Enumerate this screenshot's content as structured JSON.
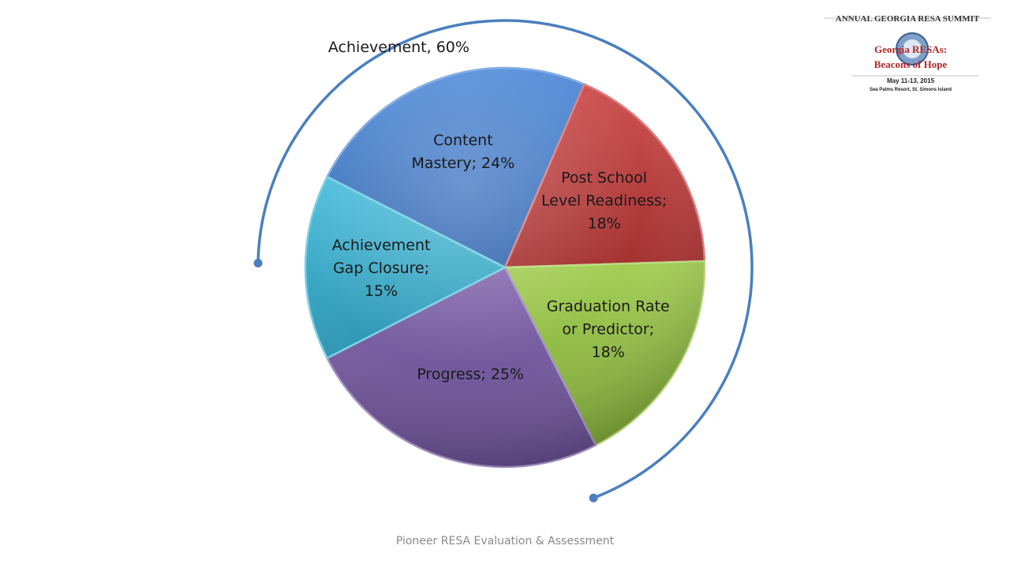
{
  "footer": "Pioneer RESA Evaluation & Assessment",
  "logo": {
    "banner": "ANNUAL GEORGIA RESA SUMMIT",
    "title_line1": "Georgia RESAs:",
    "title_line2": "Beacons of Hope",
    "dates": "May 11-13, 2015",
    "venue": "Sea Palms Resort, St. Simons Island"
  },
  "chart_data": {
    "type": "pie",
    "title": "",
    "slices": [
      {
        "label": "Content Mastery",
        "display": [
          "Content",
          "Mastery; 24%"
        ],
        "value": 24,
        "color": "#3f7fd6"
      },
      {
        "label": "Post School Level Readiness",
        "display": [
          "Post School",
          "Level Readiness;",
          "18%"
        ],
        "value": 18,
        "color": "#c83a3a"
      },
      {
        "label": "Graduation Rate or Predictor",
        "display": [
          "Graduation Rate",
          "or Predictor;",
          "18%"
        ],
        "value": 18,
        "color": "#98c940"
      },
      {
        "label": "Progress",
        "display": [
          "Progress; 25%"
        ],
        "value": 25,
        "color": "#7557a6"
      },
      {
        "label": "Achievement Gap Closure",
        "display": [
          "Achievement",
          "Gap Closure;",
          "15%"
        ],
        "value": 15,
        "color": "#36b6d8"
      }
    ],
    "annotation": {
      "text": "Achievement, 60%",
      "covers": [
        "Content Mastery",
        "Post School Level Readiness",
        "Graduation Rate or Predictor"
      ],
      "color": "#4a7fbf"
    }
  }
}
